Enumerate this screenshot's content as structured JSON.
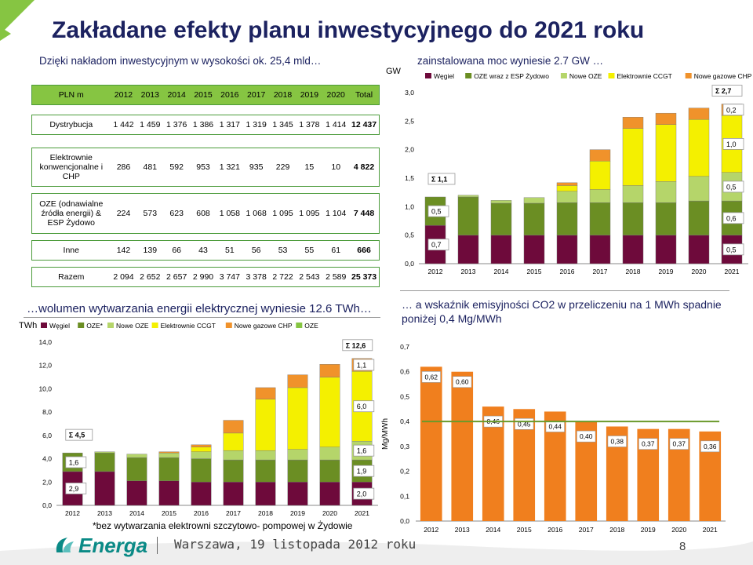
{
  "slide": {
    "title": "Zakładane efekty planu inwestycyjnego do 2021 roku",
    "subtitle_table": "Dzięki nakładom inwestycyjnym w wysokości ok. 25,4 mld…",
    "subtitle_capacity": "zainstalowana moc wyniesie 2.7 GW …",
    "subtitle_volume": "…wolumen wytwarzania energii elektrycznej wyniesie 12.6 TWh…",
    "subtitle_emission": "… a wskaźnik emisyjności CO2 w przeliczeniu na 1 MWh spadnie poniżej 0,4 Mg/MWh",
    "footnote": "*bez wytwarzania elektrowni szczytowo- pompowej w Żydowie",
    "footer_logo": "Energa",
    "footer_text": "Warszawa, 19 listopada 2012 roku",
    "page_number": "8"
  },
  "colors": {
    "title": "#1c2260",
    "accent_green": "#86c542",
    "coal": "#6e0a3b",
    "oze": "#6b8e23",
    "new_oze": "#b5d56a",
    "ccgt": "#f4f000",
    "chp": "#f0922b",
    "emission_bar": "#f07f1e",
    "emission_line": "#6a9a2a"
  },
  "table": {
    "header": {
      "label": "PLN m",
      "years": [
        "2012",
        "2013",
        "2014",
        "2015",
        "2016",
        "2017",
        "2018",
        "2019",
        "2020"
      ],
      "total": "Total"
    },
    "rows": [
      {
        "label": "Dystrybucja",
        "values": [
          "1 442",
          "1 459",
          "1 376",
          "1 386",
          "1 317",
          "1 319",
          "1 345",
          "1 378",
          "1 414"
        ],
        "total": "12 437"
      },
      {
        "label": "Elektrownie konwencjonalne i CHP",
        "values": [
          "286",
          "481",
          "592",
          "953",
          "1 321",
          "935",
          "229",
          "15",
          "10"
        ],
        "total": "4 822"
      },
      {
        "label": "OZE (odnawialne źródła energii) & ESP Żydowo",
        "values": [
          "224",
          "573",
          "623",
          "608",
          "1 058",
          "1 068",
          "1 095",
          "1 095",
          "1 104"
        ],
        "total": "7 448"
      },
      {
        "label": "Inne",
        "values": [
          "142",
          "139",
          "66",
          "43",
          "51",
          "56",
          "53",
          "55",
          "61"
        ],
        "total": "666"
      },
      {
        "label": "Razem",
        "values": [
          "2 094",
          "2 652",
          "2 657",
          "2 990",
          "3 747",
          "3 378",
          "2 722",
          "2 543",
          "2 589"
        ],
        "total": "25 373"
      }
    ]
  },
  "chart_data": [
    {
      "type": "bar",
      "stacked": true,
      "ylabel": "GW",
      "ylim": [
        0,
        3.0
      ],
      "yticks": [
        "0,0",
        "0,5",
        "1,0",
        "1,5",
        "2,0",
        "2,5",
        "3,0"
      ],
      "categories": [
        "2012",
        "2013",
        "2014",
        "2015",
        "2016",
        "2017",
        "2018",
        "2019",
        "2020",
        "2021"
      ],
      "series": [
        {
          "name": "Węgiel",
          "color": "#6e0a3b",
          "values": [
            0.67,
            0.5,
            0.5,
            0.5,
            0.5,
            0.5,
            0.5,
            0.5,
            0.5,
            0.5
          ]
        },
        {
          "name": "OZE wraz z ESP Żydowo",
          "color": "#6b8e23",
          "values": [
            0.5,
            0.67,
            0.56,
            0.56,
            0.57,
            0.57,
            0.57,
            0.57,
            0.6,
            0.6
          ]
        },
        {
          "name": "Nowe OZE",
          "color": "#b5d56a",
          "values": [
            0.0,
            0.03,
            0.05,
            0.1,
            0.2,
            0.23,
            0.3,
            0.37,
            0.43,
            0.5
          ]
        },
        {
          "name": "Elektrownie CCGT",
          "color": "#f4f000",
          "values": [
            0,
            0,
            0,
            0,
            0.1,
            0.5,
            1.0,
            1.0,
            1.0,
            1.0
          ]
        },
        {
          "name": "Nowe gazowe CHP",
          "color": "#f0922b",
          "values": [
            0,
            0,
            0,
            0,
            0.05,
            0.2,
            0.2,
            0.2,
            0.2,
            0.2
          ]
        }
      ],
      "annotations": {
        "start": [
          "0,7",
          "0,5"
        ],
        "start_sum": "Σ 1,1",
        "end": [
          "0,5",
          "0,6",
          "0,5",
          "1,0",
          "0,2"
        ],
        "end_sum": "Σ 2,7"
      }
    },
    {
      "type": "bar",
      "stacked": true,
      "ylabel": "TWh",
      "ylim": [
        0,
        14.0
      ],
      "yticks": [
        "0,0",
        "2,0",
        "4,0",
        "6,0",
        "8,0",
        "10,0",
        "12,0",
        "14,0"
      ],
      "categories": [
        "2012",
        "2013",
        "2014",
        "2015",
        "2016",
        "2017",
        "2018",
        "2019",
        "2020",
        "2021"
      ],
      "series": [
        {
          "name": "Węgiel",
          "color": "#6e0a3b",
          "values": [
            2.9,
            2.9,
            2.1,
            2.1,
            2.0,
            2.0,
            2.0,
            2.0,
            2.0,
            2.0
          ]
        },
        {
          "name": "OZE*",
          "color": "#6b8e23",
          "values": [
            1.6,
            1.6,
            2.0,
            2.0,
            2.0,
            1.9,
            1.9,
            1.9,
            1.9,
            1.9
          ]
        },
        {
          "name": "Nowe OZE",
          "color": "#b5d56a",
          "values": [
            0.0,
            0.1,
            0.3,
            0.4,
            0.6,
            0.8,
            0.8,
            0.9,
            1.1,
            1.6
          ]
        },
        {
          "name": "Elektrownie CCGT",
          "color": "#f4f000",
          "values": [
            0,
            0,
            0,
            0,
            0.4,
            1.5,
            4.4,
            5.3,
            6.0,
            6.0
          ]
        },
        {
          "name": "Nowe gazowe CHP",
          "color": "#f0922b",
          "values": [
            0,
            0,
            0,
            0.1,
            0.2,
            1.1,
            1.0,
            1.1,
            1.1,
            1.1
          ]
        },
        {
          "name": "OZE",
          "color": "#86c542",
          "values": [
            0,
            0,
            0,
            0,
            0,
            0,
            0,
            0,
            0,
            0
          ]
        }
      ],
      "annotations": {
        "start": [
          "2,9",
          "1,6"
        ],
        "start_sum": "Σ 4,5",
        "end": [
          "2,0",
          "1,9",
          "1,6",
          "6,0",
          "1,1"
        ],
        "end_sum": "Σ 12,6"
      }
    },
    {
      "type": "bar",
      "ylabel": "Mg/MWh",
      "ylim": [
        0,
        0.7
      ],
      "yticks": [
        "0,0",
        "0,1",
        "0,2",
        "0,3",
        "0,4",
        "0,5",
        "0,6",
        "0,7"
      ],
      "categories": [
        "2012",
        "2013",
        "2014",
        "2015",
        "2016",
        "2017",
        "2018",
        "2019",
        "2020",
        "2021"
      ],
      "values": [
        0.62,
        0.6,
        0.46,
        0.45,
        0.44,
        0.4,
        0.38,
        0.37,
        0.37,
        0.36
      ],
      "labels": [
        "0,62",
        "0,60",
        "0,46",
        "0,45",
        "0,44",
        "0,40",
        "0,38",
        "0,37",
        "0,37",
        "0,36"
      ],
      "reference_line": 0.4
    }
  ]
}
